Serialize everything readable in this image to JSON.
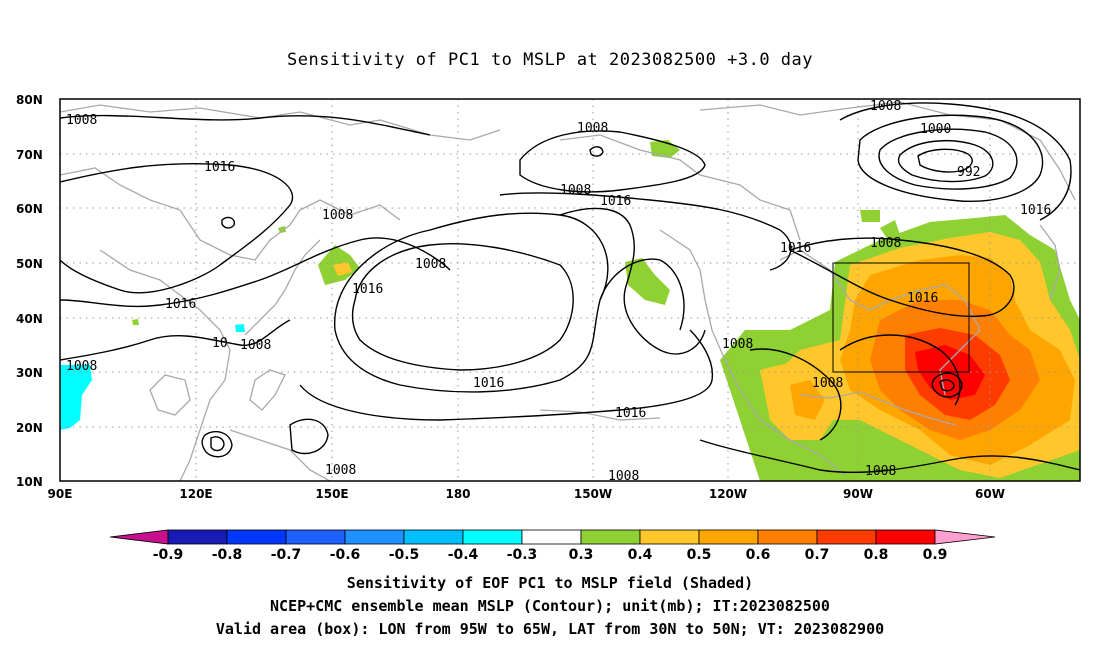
{
  "title": "Sensitivity of PC1 to MSLP at 2023082500 +3.0 day",
  "lat_labels": [
    "80N",
    "70N",
    "60N",
    "50N",
    "40N",
    "30N",
    "20N",
    "10N"
  ],
  "lon_labels": [
    "90E",
    "120E",
    "150E",
    "180",
    "150W",
    "120W",
    "90W",
    "60W"
  ],
  "contour_labels": {
    "c1008a": "1008",
    "c1008b": "1008",
    "c1008c": "1008",
    "c1008d": "1008",
    "c1008e": "1008",
    "c1008f": "1008",
    "c1008g": "1008",
    "c1008h": "1008",
    "c1008i": "1008",
    "c1008j": "1008",
    "c1008k": "1008",
    "c1008l": "1008",
    "c1008m": "1008",
    "c1008n": "1008",
    "c1016a": "1016",
    "c1016b": "1016",
    "c1016c": "1016",
    "c1016d": "1016",
    "c1016e": "1016",
    "c1016f": "1016",
    "c1016g": "1016",
    "c1016h": "1016",
    "c1016i": "1016",
    "c1000": "1000",
    "c992": "992",
    "c10": "10"
  },
  "colorbar": {
    "labels": [
      "-0.9",
      "-0.8",
      "-0.7",
      "-0.6",
      "-0.5",
      "-0.4",
      "-0.3",
      "0.3",
      "0.4",
      "0.5",
      "0.6",
      "0.7",
      "0.8",
      "0.9"
    ],
    "colors": [
      "#1a1ab4",
      "#0038ff",
      "#2060ff",
      "#1e90ff",
      "#00bfff",
      "#00ffff",
      "#ffffff",
      "#8fd132",
      "#ffc72c",
      "#ffa500",
      "#ff7f00",
      "#ff3c00",
      "#ff0000"
    ],
    "low_end_color": "#c8108c",
    "high_end_color": "#ff9fd0"
  },
  "captions": {
    "line1": "Sensitivity of EOF PC1 to MSLP field (Shaded)",
    "line2": "NCEP+CMC ensemble mean MSLP (Contour); unit(mb); IT:2023082500",
    "line3": "Valid area (box): LON from 95W to 65W, LAT from 30N to 50N; VT: 2023082900"
  }
}
